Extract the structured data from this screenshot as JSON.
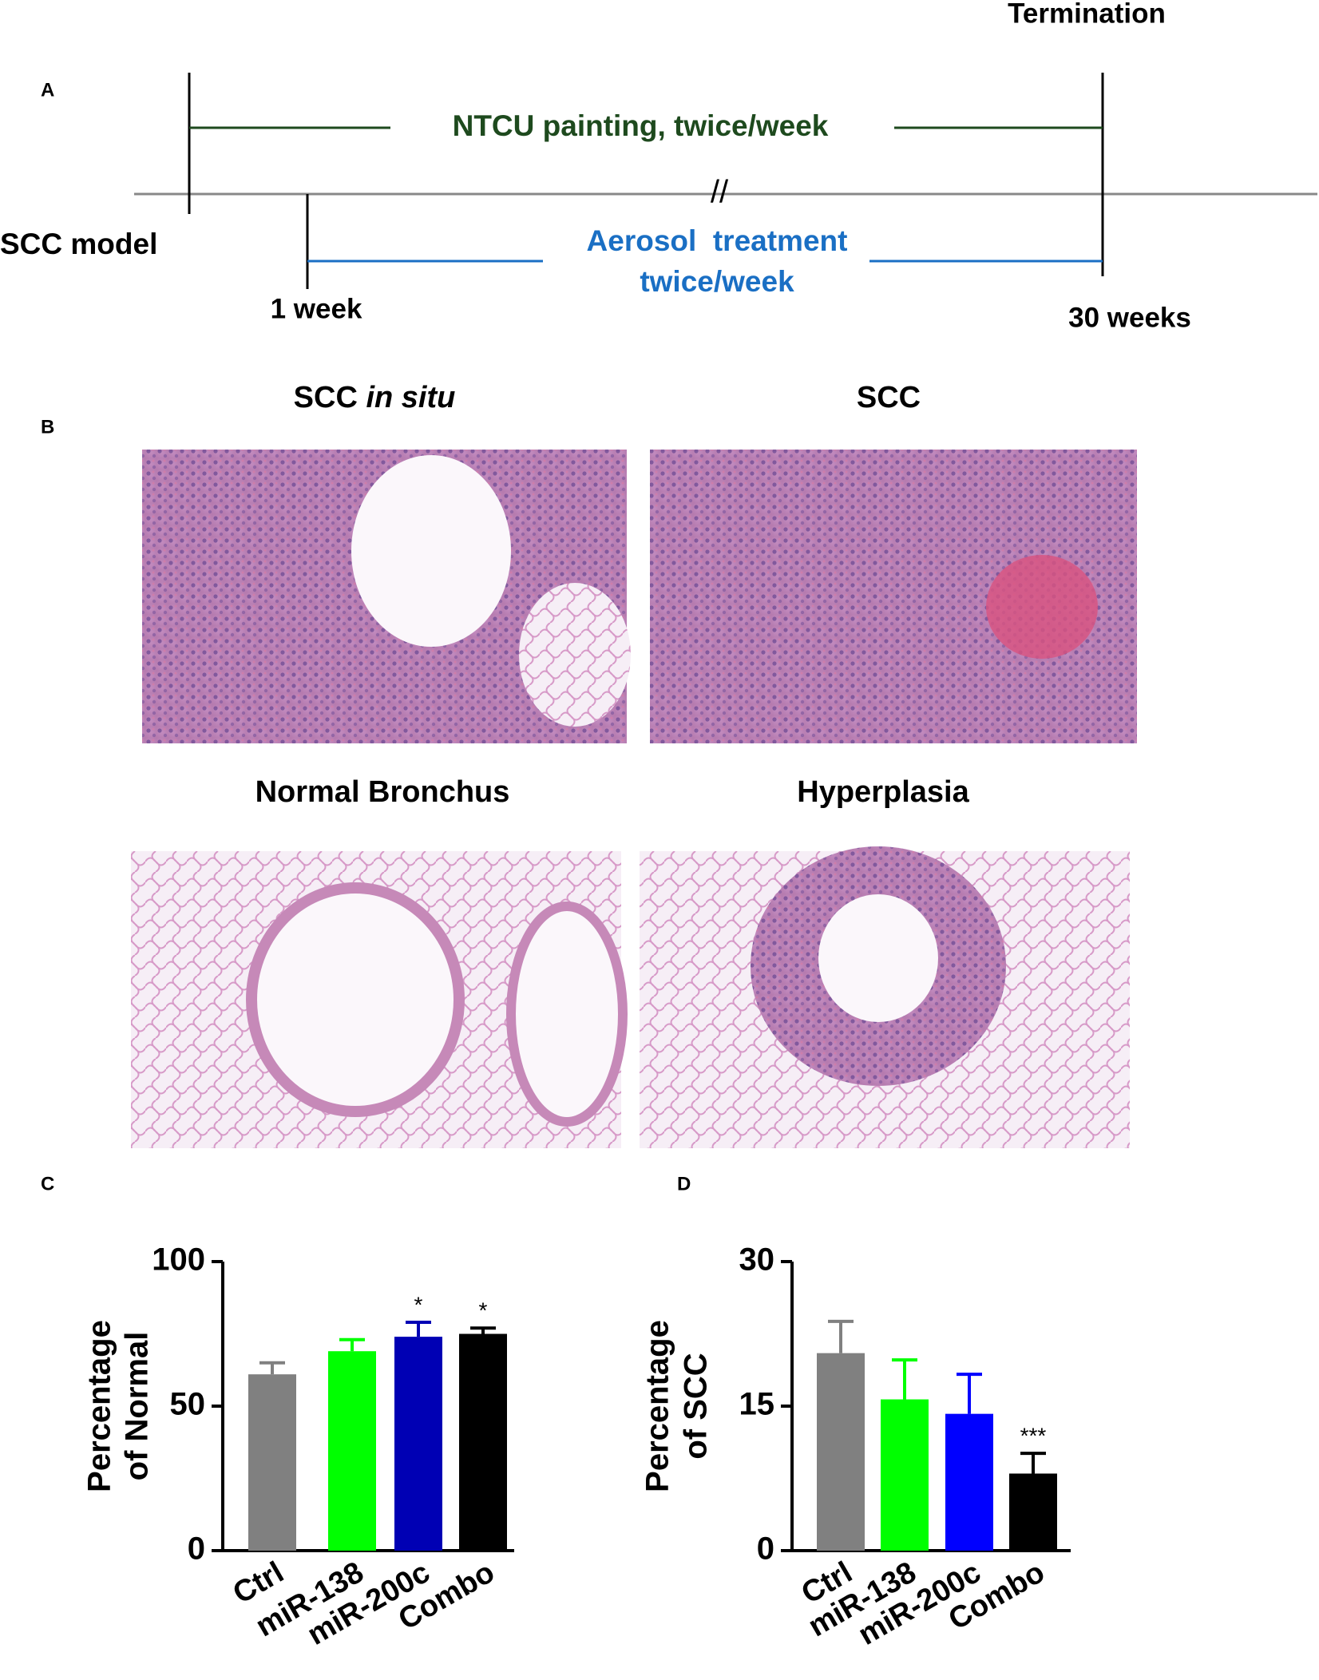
{
  "panel_a": {
    "label": "A",
    "termination": "Termination",
    "ntcu": "NTCU painting, twice/week",
    "break_mark": "//",
    "model": "SCC model",
    "start": "1 week",
    "aerosol_line1": "Aerosol  treatment",
    "aerosol_line2": "twice/week",
    "end": "30 weeks"
  },
  "panel_b": {
    "label": "B",
    "titles": [
      {
        "main": "SCC",
        "italic": "in situ"
      },
      {
        "main": "SCC"
      },
      {
        "main": "Normal Bronchus"
      },
      {
        "main": "Hyperplasia"
      }
    ]
  },
  "chart_data": [
    {
      "type": "bar",
      "panel": "C",
      "ylabel": [
        "Percentage",
        "of Normal"
      ],
      "categories": [
        "Ctrl",
        "miR-138",
        "miR-200c",
        "Combo"
      ],
      "values": [
        61,
        69,
        74,
        75
      ],
      "errors": [
        4,
        4,
        5,
        2
      ],
      "colors": [
        "#808080",
        "#00ff00",
        "#0000b4",
        "#000000"
      ],
      "ylim": [
        0,
        100
      ],
      "yticks": [
        0,
        50,
        100
      ],
      "annotations": [
        {
          "text": "*",
          "at": "miR-200c"
        },
        {
          "text": "*",
          "at": "Combo"
        }
      ]
    },
    {
      "type": "bar",
      "panel": "D",
      "ylabel": [
        "Percentage",
        "of SCC"
      ],
      "categories": [
        "Ctrl",
        "miR-138",
        "miR-200c",
        "Combo"
      ],
      "values": [
        20.5,
        15.7,
        14.2,
        8.0
      ],
      "errors": [
        3.3,
        4.1,
        4.1,
        2.1
      ],
      "colors": [
        "#808080",
        "#00ff00",
        "#0000ff",
        "#000000"
      ],
      "ylim": [
        0,
        30
      ],
      "yticks": [
        0,
        15,
        30
      ],
      "annotations": [
        {
          "text": "***",
          "at": "Combo"
        }
      ]
    }
  ]
}
